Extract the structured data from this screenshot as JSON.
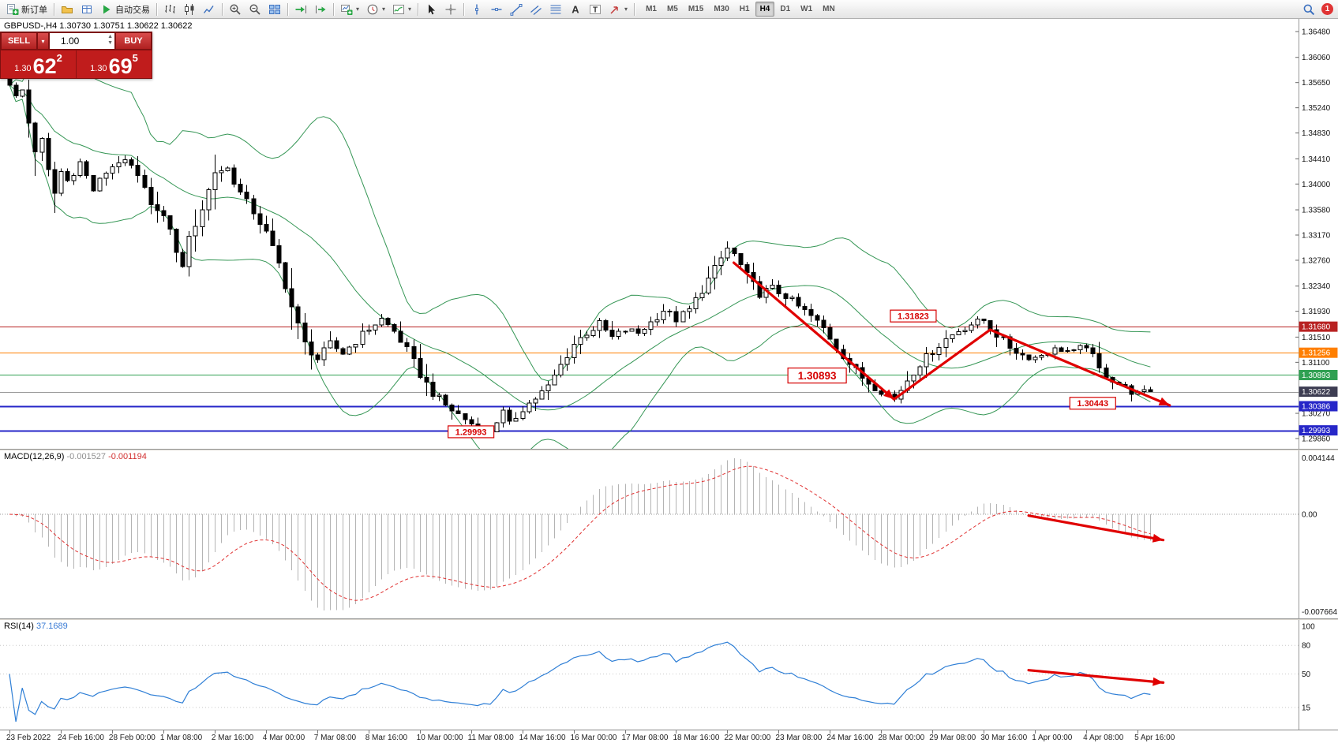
{
  "toolbar": {
    "items": [
      {
        "type": "button",
        "name": "new-order-button",
        "icon": "doc-plus",
        "label": "新订单"
      },
      {
        "type": "sep"
      },
      {
        "type": "button",
        "name": "profiles-button",
        "icon": "folder"
      },
      {
        "type": "button",
        "name": "data-window-button",
        "icon": "grid-blue"
      },
      {
        "type": "button",
        "name": "autotrade-button",
        "icon": "play",
        "label": "自动交易"
      },
      {
        "type": "sep"
      },
      {
        "type": "button",
        "name": "bar-chart-button",
        "icon": "bars"
      },
      {
        "type": "button",
        "name": "candle-chart-button",
        "icon": "candles"
      },
      {
        "type": "button",
        "name": "line-chart-button",
        "icon": "linechart"
      },
      {
        "type": "sep"
      },
      {
        "type": "button",
        "name": "zoom-in-button",
        "icon": "zoom-in"
      },
      {
        "type": "button",
        "name": "zoom-out-button",
        "icon": "zoom-out"
      },
      {
        "type": "button",
        "name": "tile-windows-button",
        "icon": "tile"
      },
      {
        "type": "sep"
      },
      {
        "type": "button",
        "name": "auto-scroll-button",
        "icon": "auto-scroll"
      },
      {
        "type": "button",
        "name": "chart-shift-button",
        "icon": "chart-shift"
      },
      {
        "type": "sep"
      },
      {
        "type": "button",
        "name": "new-chart-button",
        "icon": "new-chart",
        "caret": true
      },
      {
        "type": "button",
        "name": "periods-button",
        "icon": "clock",
        "caret": true
      },
      {
        "type": "button",
        "name": "indicators-button",
        "icon": "indicator",
        "caret": true
      },
      {
        "type": "sep"
      },
      {
        "type": "button",
        "name": "cursor-button",
        "icon": "cursor"
      },
      {
        "type": "button",
        "name": "crosshair-button",
        "icon": "crosshair"
      },
      {
        "type": "sep"
      },
      {
        "type": "button",
        "name": "vertical-line-button",
        "icon": "vline"
      },
      {
        "type": "button",
        "name": "horizontal-line-button",
        "icon": "hline"
      },
      {
        "type": "button",
        "name": "trendline-button",
        "icon": "trendline"
      },
      {
        "type": "button",
        "name": "channel-button",
        "icon": "channel"
      },
      {
        "type": "button",
        "name": "fibonacci-button",
        "icon": "fib"
      },
      {
        "type": "button",
        "name": "text-button",
        "icon": "text-a"
      },
      {
        "type": "button",
        "name": "text-label-button",
        "icon": "text-t"
      },
      {
        "type": "button",
        "name": "arrows-button",
        "icon": "arrow-obj",
        "caret": true
      },
      {
        "type": "sep"
      }
    ],
    "timeframes": [
      "M1",
      "M5",
      "M15",
      "M30",
      "H1",
      "H4",
      "D1",
      "W1",
      "MN"
    ],
    "active_timeframe": "H4",
    "notification_count": "1"
  },
  "symbol_header": {
    "text": "GBPUSD-,H4 1.30730 1.30751 1.30622 1.30622"
  },
  "trade_widget": {
    "sell_label": "SELL",
    "buy_label": "BUY",
    "volume": "1.00",
    "sell_price_prefix": "1.30",
    "sell_price_big": "62",
    "sell_price_sup": "2",
    "buy_price_prefix": "1.30",
    "buy_price_big": "69",
    "buy_price_sup": "5"
  },
  "chart_data": {
    "type": "candlestick",
    "symbol": "GBPUSD-",
    "timeframe": "H4",
    "ohlc_display": {
      "open": "1.30730",
      "high": "1.30751",
      "low": "1.30622",
      "close": "1.30622"
    },
    "last_price": 1.30622,
    "y_ticks": [
      1.3648,
      1.3606,
      1.3565,
      1.3524,
      1.3483,
      1.3441,
      1.34,
      1.3358,
      1.3317,
      1.3276,
      1.3234,
      1.3193,
      1.3151,
      1.311,
      1.3027,
      1.2986
    ],
    "price_levels": [
      {
        "label": "1.31680",
        "price": 1.3168,
        "color": "#b82222",
        "role": "resistance-line"
      },
      {
        "label": "1.31256",
        "price": 1.31256,
        "color": "#ff7f00",
        "role": "resistance-line"
      },
      {
        "label": "1.30893",
        "price": 1.30893,
        "color": "#2fa052",
        "role": "pivot-line"
      },
      {
        "label": "1.30622",
        "price": 1.30622,
        "color": "#3d3d52",
        "role": "current-price"
      },
      {
        "label": "1.30386",
        "price": 1.30386,
        "color": "#2727c8",
        "role": "support-line"
      },
      {
        "label": "1.29993",
        "price": 1.29993,
        "color": "#2727c8",
        "role": "support-line"
      }
    ],
    "annotations": [
      {
        "text": "1.29993",
        "i": 72,
        "price": 1.2997,
        "size": "small"
      },
      {
        "text": "1.30893",
        "i": 126,
        "price": 1.30885,
        "size": "large"
      },
      {
        "text": "1.31823",
        "i": 141,
        "price": 1.31853,
        "size": "small"
      },
      {
        "text": "1.30443",
        "i": 169,
        "price": 1.30434,
        "size": "small"
      }
    ],
    "trend_arrows": [
      {
        "from": {
          "i": 113,
          "price": 1.3272
        },
        "to": {
          "i": 138,
          "price": 1.305
        },
        "head": true
      },
      {
        "from": {
          "i": 138,
          "price": 1.305
        },
        "to": {
          "i": 153,
          "price": 1.3163
        },
        "head": false
      },
      {
        "from": {
          "i": 153,
          "price": 1.3163
        },
        "to": {
          "i": 181,
          "price": 1.304
        },
        "head": true
      }
    ],
    "candle_count": 179,
    "bollinger": {
      "period": 20,
      "deviation": 2
    },
    "price_waypoints": [
      [
        0,
        1.3565
      ],
      [
        1,
        1.354
      ],
      [
        2,
        1.3552
      ],
      [
        3,
        1.35
      ],
      [
        4,
        1.3455
      ],
      [
        5,
        1.347
      ],
      [
        6,
        1.342
      ],
      [
        7,
        1.3385
      ],
      [
        8,
        1.342
      ],
      [
        9,
        1.3405
      ],
      [
        11,
        1.3435
      ],
      [
        13,
        1.339
      ],
      [
        15,
        1.342
      ],
      [
        17,
        1.3438
      ],
      [
        19,
        1.3428
      ],
      [
        21,
        1.339
      ],
      [
        23,
        1.3355
      ],
      [
        25,
        1.333
      ],
      [
        26,
        1.3285
      ],
      [
        27,
        1.327
      ],
      [
        28,
        1.331
      ],
      [
        30,
        1.336
      ],
      [
        32,
        1.342
      ],
      [
        34,
        1.3425
      ],
      [
        36,
        1.3385
      ],
      [
        38,
        1.3355
      ],
      [
        40,
        1.332
      ],
      [
        42,
        1.327
      ],
      [
        44,
        1.32
      ],
      [
        46,
        1.314
      ],
      [
        48,
        1.3115
      ],
      [
        50,
        1.314
      ],
      [
        52,
        1.3125
      ],
      [
        54,
        1.3145
      ],
      [
        56,
        1.3165
      ],
      [
        58,
        1.318
      ],
      [
        60,
        1.316
      ],
      [
        62,
        1.313
      ],
      [
        64,
        1.309
      ],
      [
        66,
        1.306
      ],
      [
        68,
        1.304
      ],
      [
        70,
        1.3025
      ],
      [
        72,
        1.301
      ],
      [
        74,
        1.3
      ],
      [
        75,
        1.2999
      ],
      [
        76,
        1.3015
      ],
      [
        77,
        1.3028
      ],
      [
        78,
        1.3008
      ],
      [
        80,
        1.3035
      ],
      [
        82,
        1.3052
      ],
      [
        84,
        1.307
      ],
      [
        86,
        1.3105
      ],
      [
        88,
        1.314
      ],
      [
        90,
        1.3158
      ],
      [
        92,
        1.3172
      ],
      [
        94,
        1.315
      ],
      [
        96,
        1.3162
      ],
      [
        98,
        1.3158
      ],
      [
        100,
        1.3175
      ],
      [
        102,
        1.3195
      ],
      [
        104,
        1.318
      ],
      [
        106,
        1.3195
      ],
      [
        108,
        1.3228
      ],
      [
        110,
        1.3262
      ],
      [
        112,
        1.3295
      ],
      [
        113,
        1.3285
      ],
      [
        115,
        1.325
      ],
      [
        117,
        1.3222
      ],
      [
        119,
        1.323
      ],
      [
        121,
        1.3218
      ],
      [
        123,
        1.32
      ],
      [
        125,
        1.3185
      ],
      [
        127,
        1.3165
      ],
      [
        129,
        1.3135
      ],
      [
        131,
        1.3108
      ],
      [
        133,
        1.3085
      ],
      [
        135,
        1.307
      ],
      [
        137,
        1.3058
      ],
      [
        138,
        1.305
      ],
      [
        140,
        1.3082
      ],
      [
        142,
        1.3108
      ],
      [
        144,
        1.3128
      ],
      [
        146,
        1.3148
      ],
      [
        148,
        1.3162
      ],
      [
        150,
        1.3172
      ],
      [
        152,
        1.3178
      ],
      [
        154,
        1.3155
      ],
      [
        156,
        1.3135
      ],
      [
        158,
        1.3122
      ],
      [
        160,
        1.3118
      ],
      [
        162,
        1.3128
      ],
      [
        164,
        1.3132
      ],
      [
        166,
        1.3125
      ],
      [
        168,
        1.3138
      ],
      [
        170,
        1.3098
      ],
      [
        172,
        1.3082
      ],
      [
        174,
        1.3068
      ],
      [
        176,
        1.3058
      ],
      [
        178,
        1.30622
      ]
    ],
    "time_labels": [
      "23 Feb 2022",
      "24 Feb 16:00",
      "28 Feb 00:00",
      "1 Mar 08:00",
      "2 Mar 16:00",
      "4 Mar 00:00",
      "7 Mar 08:00",
      "8 Mar 16:00",
      "10 Mar 00:00",
      "11 Mar 08:00",
      "14 Mar 16:00",
      "16 Mar 00:00",
      "17 Mar 08:00",
      "18 Mar 16:00",
      "22 Mar 00:00",
      "23 Mar 08:00",
      "24 Mar 16:00",
      "28 Mar 00:00",
      "29 Mar 08:00",
      "30 Mar 16:00",
      "1 Apr 00:00",
      "4 Apr 08:00",
      "5 Apr 16:00"
    ],
    "label_every_n_candles": 8
  },
  "macd": {
    "name": "MACD(12,26,9)",
    "value_main": "-0.001527",
    "value_signal": "-0.001194",
    "axis_top": "0.004144",
    "axis_zero": "0.00",
    "axis_bottom": "-0.007664",
    "params": {
      "fast": 12,
      "slow": 26,
      "signal": 9
    },
    "arrow": {
      "from": {
        "i": 159,
        "v": -0.0001
      },
      "to": {
        "i": 180,
        "v": -0.0019
      }
    }
  },
  "rsi": {
    "name": "RSI(14)",
    "value": "37.1689",
    "period": 14,
    "levels": [
      100,
      80,
      50,
      15
    ],
    "arrow": {
      "from": {
        "i": 159,
        "v": 54
      },
      "to": {
        "i": 180,
        "v": 41
      }
    }
  }
}
